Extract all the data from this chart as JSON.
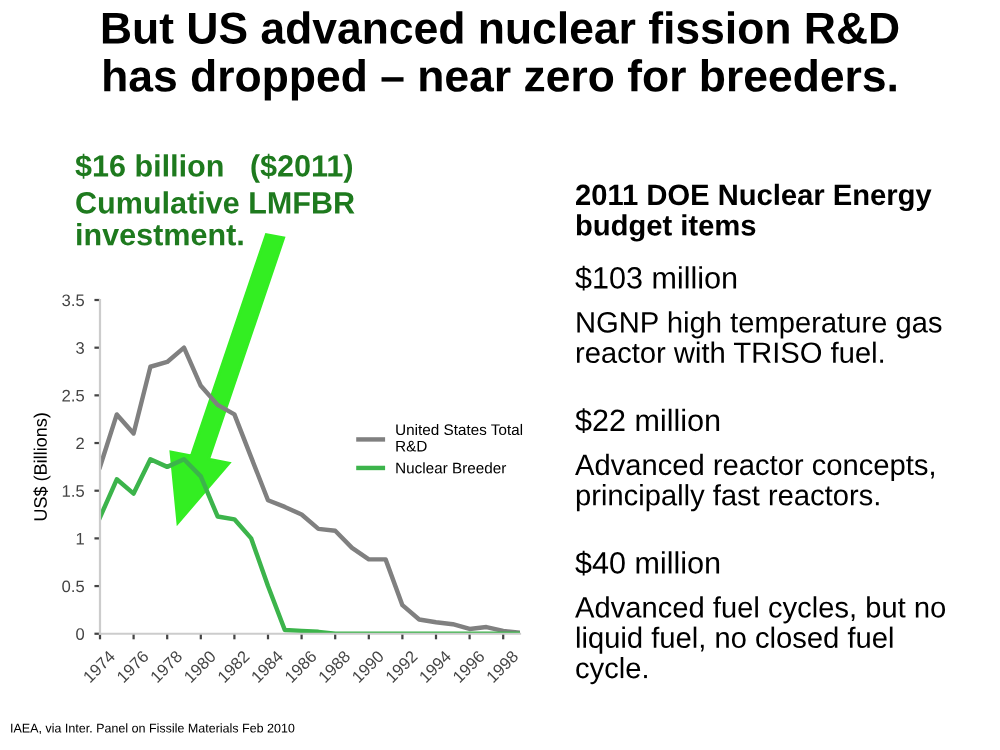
{
  "chart_data": {
    "type": "line",
    "title": "But US advanced nuclear fission R&D\nhas dropped – near zero for breeders.",
    "ylabel": "US$ (Billions)",
    "x": [
      1974,
      1975,
      1976,
      1977,
      1978,
      1979,
      1980,
      1981,
      1982,
      1983,
      1984,
      1985,
      1986,
      1987,
      1988,
      1989,
      1990,
      1991,
      1992,
      1993,
      1994,
      1995,
      1996,
      1997,
      1998,
      1999
    ],
    "series": [
      {
        "name": "United States Total\nR&D",
        "color": "#808080",
        "values": [
          1.75,
          2.3,
          2.1,
          2.8,
          2.85,
          3.0,
          2.6,
          2.4,
          2.3,
          1.85,
          1.4,
          1.33,
          1.25,
          1.1,
          1.08,
          0.9,
          0.78,
          0.78,
          0.3,
          0.15,
          0.12,
          0.1,
          0.05,
          0.07,
          0.03,
          0.01
        ]
      },
      {
        "name": "Nuclear Breeder",
        "color": "#3cb44b",
        "values": [
          1.22,
          1.62,
          1.47,
          1.83,
          1.75,
          1.83,
          1.65,
          1.23,
          1.2,
          1.0,
          0.5,
          0.04,
          0.03,
          0.02,
          0.0,
          0.0,
          0.0,
          0.0,
          0.0,
          0.0,
          0.0,
          0.0,
          0.0,
          0.0,
          0.0,
          0.0
        ]
      }
    ],
    "xlim": [
      1974,
      1999
    ],
    "xticks": [
      1974,
      1976,
      1978,
      1980,
      1982,
      1984,
      1986,
      1988,
      1990,
      1992,
      1994,
      1996,
      1998
    ],
    "ylim": [
      0,
      3.5
    ],
    "yticks": [
      0,
      0.5,
      1,
      1.5,
      2,
      2.5,
      3,
      3.5
    ],
    "legend": "right",
    "grid": false,
    "annotations": [
      "$16 billion   ($2011)",
      "Cumulative LMFBR\ninvestment.",
      "2011 DOE Nuclear Energy\nbudget items",
      "$103 million",
      "NGNP high temperature gas\nreactor with TRISO fuel.",
      "$22 million",
      "Advanced reactor concepts,\nprincipally fast reactors.",
      "$40 million",
      "Advanced fuel cycles, but no\nliquid fuel, no closed fuel\ncycle.",
      "IAEA, via Inter. Panel on Fissile Materials Feb 2010"
    ]
  }
}
